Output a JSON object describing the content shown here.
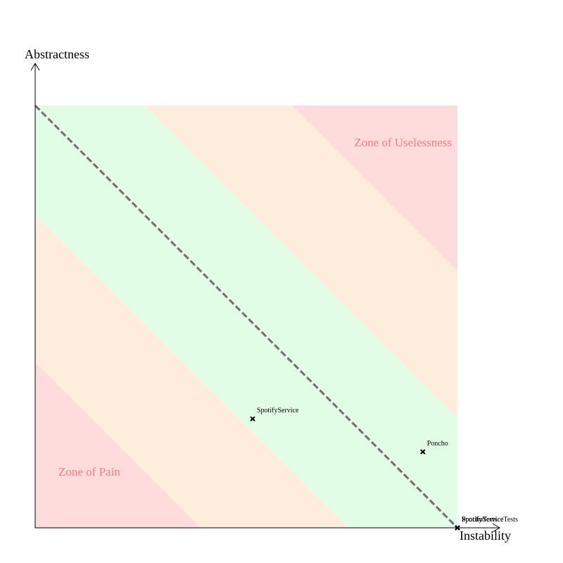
{
  "chart_data": {
    "type": "scatter",
    "title": "",
    "xlabel": "Instability",
    "ylabel": "Abstractness",
    "xlim": [
      0,
      1
    ],
    "ylim": [
      0,
      1
    ],
    "grid": false,
    "reference_line": {
      "from": [
        0,
        1
      ],
      "to": [
        1,
        0
      ],
      "style": "dashed"
    },
    "zones": [
      {
        "name": "Zone of Uselessness",
        "color": "#f08080"
      },
      {
        "name": "Zone of Pain",
        "color": "#f08080"
      }
    ],
    "band_colors": {
      "pain": "#ffdcdc",
      "warning": "#feecdc",
      "main_sequence": "#e2fde6",
      "background": "#ffffff"
    },
    "points": [
      {
        "label": "SpotifyService",
        "x": 0.515,
        "y": 0.258
      },
      {
        "label": "Poncho",
        "x": 0.918,
        "y": 0.18
      },
      {
        "label": "SpotifyService",
        "x": 1.0,
        "y": 0.0
      },
      {
        "label": "PonchoTests",
        "x": 1.0,
        "y": 0.0
      },
      {
        "label": "SpotifyServiceTests",
        "x": 1.0,
        "y": 0.0
      }
    ]
  }
}
